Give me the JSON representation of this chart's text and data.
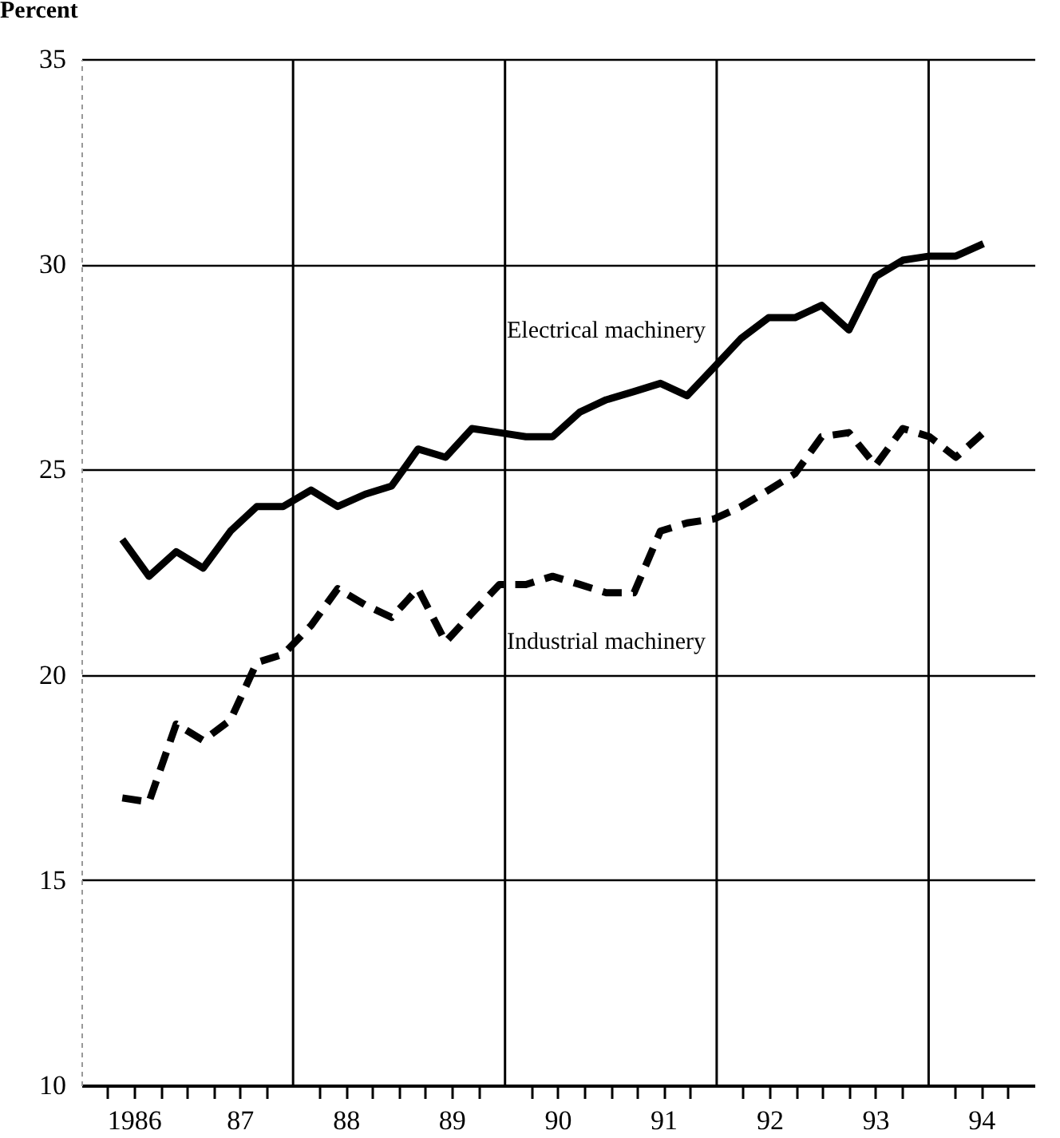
{
  "chart_data": {
    "type": "line",
    "ylabel": "Percent",
    "x": [
      "1986-05-22",
      "1986-08-22",
      "1986-11-24",
      "1987-02-25",
      "1987-05-30",
      "1987-08-29",
      "1987-11-28",
      "1988-03-03",
      "1988-06-03",
      "1988-09-06",
      "1988-12-06",
      "1989-03-07",
      "1989-06-10",
      "1989-09-09",
      "1989-12-13",
      "1990-03-14",
      "1990-06-14",
      "1990-09-16",
      "1990-12-16",
      "1991-03-22",
      "1991-06-21",
      "1991-09-21",
      "1991-12-24",
      "1992-03-26",
      "1992-06-28",
      "1992-09-27",
      "1992-12-28",
      "1993-04-01",
      "1993-07-02",
      "1993-10-04",
      "1994-01-04",
      "1994-04-05",
      "1994-07-09"
    ],
    "series": [
      {
        "name": "Electrical machinery",
        "color": "#000000",
        "line_style": "solid",
        "values": [
          23.3,
          22.4,
          23.0,
          22.6,
          23.5,
          24.1,
          24.1,
          24.5,
          24.1,
          24.4,
          24.6,
          25.5,
          25.3,
          26.0,
          25.9,
          25.8,
          25.8,
          26.4,
          26.7,
          26.9,
          27.1,
          26.8,
          27.5,
          28.2,
          28.7,
          28.7,
          29.0,
          28.4,
          29.7,
          30.1,
          30.2,
          30.2,
          30.5
        ]
      },
      {
        "name": "Industrial machinery",
        "color": "#000000",
        "line_style": "dashed",
        "values": [
          17.0,
          16.9,
          18.8,
          18.4,
          18.9,
          20.3,
          20.5,
          21.2,
          22.1,
          21.7,
          21.4,
          22.1,
          20.8,
          21.5,
          22.2,
          22.2,
          22.4,
          22.2,
          22.0,
          22.0,
          23.5,
          23.7,
          23.8,
          24.1,
          24.5,
          24.9,
          25.8,
          25.9,
          25.1,
          26.0,
          25.8,
          25.3,
          25.9
        ]
      }
    ],
    "xlim": [
      "1986-01-01",
      "1995-01-01"
    ],
    "xticks": [
      {
        "value": "1986-04-01",
        "label": null
      },
      {
        "value": "1986-07-01",
        "label": "1986"
      },
      {
        "value": "1986-10-01",
        "label": null
      },
      {
        "value": "1987-01-01",
        "label": null
      },
      {
        "value": "1987-04-01",
        "label": null
      },
      {
        "value": "1987-07-01",
        "label": "87"
      },
      {
        "value": "1987-10-01",
        "label": null
      },
      {
        "value": "1988-04-01",
        "label": null
      },
      {
        "value": "1988-07-01",
        "label": "88"
      },
      {
        "value": "1988-10-01",
        "label": null
      },
      {
        "value": "1989-01-01",
        "label": null
      },
      {
        "value": "1989-04-01",
        "label": null
      },
      {
        "value": "1989-07-01",
        "label": "89"
      },
      {
        "value": "1989-10-01",
        "label": null
      },
      {
        "value": "1990-04-01",
        "label": null
      },
      {
        "value": "1990-07-01",
        "label": "90"
      },
      {
        "value": "1990-10-01",
        "label": null
      },
      {
        "value": "1991-01-01",
        "label": null
      },
      {
        "value": "1991-04-01",
        "label": null
      },
      {
        "value": "1991-07-01",
        "label": "91"
      },
      {
        "value": "1991-10-01",
        "label": null
      },
      {
        "value": "1992-04-01",
        "label": null
      },
      {
        "value": "1992-07-01",
        "label": "92"
      },
      {
        "value": "1992-10-01",
        "label": null
      },
      {
        "value": "1993-01-01",
        "label": null
      },
      {
        "value": "1993-04-01",
        "label": null
      },
      {
        "value": "1993-07-01",
        "label": "93"
      },
      {
        "value": "1993-10-01",
        "label": null
      },
      {
        "value": "1994-04-01",
        "label": null
      },
      {
        "value": "1994-07-01",
        "label": "94"
      },
      {
        "value": "1994-10-01",
        "label": null
      }
    ],
    "ylim": [
      10,
      35
    ],
    "yticks": [
      10,
      15,
      20,
      25,
      30,
      35
    ],
    "grid": "y",
    "legend": false,
    "ref_lines": [
      {
        "axis": "x",
        "value": "1988-01-01"
      },
      {
        "axis": "x",
        "value": "1990-01-01"
      },
      {
        "axis": "x",
        "value": "1992-01-01"
      },
      {
        "axis": "x",
        "value": "1994-01-01"
      }
    ]
  }
}
